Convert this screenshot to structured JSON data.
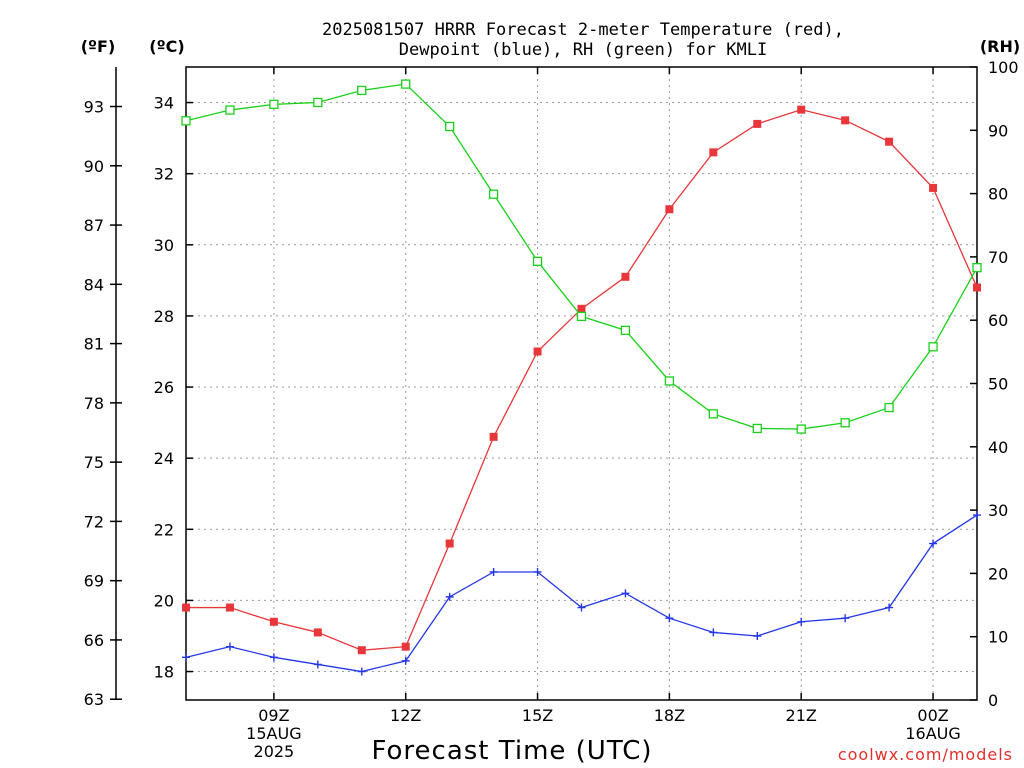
{
  "chart_data": {
    "type": "line",
    "title_line1": "2025081507 HRRR Forecast 2-meter Temperature (red),",
    "title_line2": "Dewpoint (blue), RH (green) for KMLI",
    "xlabel": "Forecast Time (UTC)",
    "credit": "coolwx.com/models",
    "unit_left_f": "(ºF)",
    "unit_left_c": "(ºC)",
    "unit_right_rh": "(RH)",
    "x_hours": [
      7,
      8,
      9,
      10,
      11,
      12,
      13,
      14,
      15,
      16,
      17,
      18,
      19,
      20,
      21,
      22,
      23,
      24,
      25
    ],
    "xlim": [
      7,
      25
    ],
    "x_ticks": [
      {
        "hour": 9,
        "lines": [
          "09Z",
          "15AUG",
          "2025"
        ]
      },
      {
        "hour": 12,
        "lines": [
          "12Z"
        ]
      },
      {
        "hour": 15,
        "lines": [
          "15Z"
        ]
      },
      {
        "hour": 18,
        "lines": [
          "18Z"
        ]
      },
      {
        "hour": 21,
        "lines": [
          "21Z"
        ]
      },
      {
        "hour": 24,
        "lines": [
          "00Z",
          "16AUG"
        ]
      }
    ],
    "ylim_c": [
      17.2,
      35
    ],
    "y_ticks_c": [
      18,
      20,
      22,
      24,
      26,
      28,
      30,
      32,
      34
    ],
    "y_ticks_f": [
      63,
      66,
      69,
      72,
      75,
      78,
      81,
      84,
      87,
      90,
      93
    ],
    "ylim_rh": [
      0,
      100
    ],
    "y_ticks_rh": [
      0,
      10,
      20,
      30,
      40,
      50,
      60,
      70,
      80,
      90,
      100
    ],
    "grid": true,
    "series": [
      {
        "name": "2-meter Temperature",
        "axis": "c",
        "color": "#e8363a",
        "marker": "filled-square",
        "values": [
          19.8,
          19.8,
          19.4,
          19.1,
          18.6,
          18.7,
          21.6,
          24.6,
          27.0,
          28.2,
          29.1,
          31.0,
          32.6,
          33.4,
          33.8,
          33.5,
          32.9,
          31.6,
          28.8
        ]
      },
      {
        "name": "Dewpoint",
        "axis": "c",
        "color": "#2437e8",
        "marker": "plus",
        "values": [
          18.4,
          18.7,
          18.4,
          18.2,
          18.0,
          18.3,
          20.1,
          20.8,
          20.8,
          19.8,
          20.2,
          19.5,
          19.1,
          19.0,
          19.4,
          19.5,
          19.8,
          21.6,
          22.4
        ]
      },
      {
        "name": "RH",
        "axis": "rh",
        "color": "#19d119",
        "marker": "open-square",
        "values": [
          91.5,
          93.2,
          94.1,
          94.4,
          96.3,
          97.3,
          90.6,
          79.9,
          69.3,
          60.6,
          58.4,
          50.4,
          45.2,
          42.9,
          42.8,
          43.8,
          46.2,
          55.8,
          68.3
        ]
      }
    ]
  }
}
